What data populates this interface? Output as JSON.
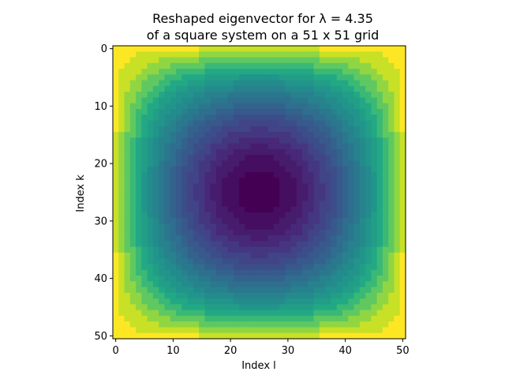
{
  "chart_data": {
    "type": "heatmap",
    "title_line1": "Reshaped eigenvector for λ = 4.35",
    "title_line2": "of a square system on a 51 x 51 grid",
    "xlabel": "Index l",
    "ylabel": "Index k",
    "grid_size": 51,
    "colormap": "viridis",
    "color_scale": [
      {
        "t": 0.0,
        "color": "#440154"
      },
      {
        "t": 0.13,
        "color": "#482475"
      },
      {
        "t": 0.25,
        "color": "#414487"
      },
      {
        "t": 0.38,
        "color": "#355f8d"
      },
      {
        "t": 0.5,
        "color": "#2a788e"
      },
      {
        "t": 0.63,
        "color": "#21918c"
      },
      {
        "t": 0.75,
        "color": "#22a884"
      },
      {
        "t": 0.82,
        "color": "#44bf70"
      },
      {
        "t": 0.88,
        "color": "#7ad151"
      },
      {
        "t": 0.94,
        "color": "#bddf26"
      },
      {
        "t": 1.0,
        "color": "#fde725"
      }
    ],
    "xlim": [
      -0.5,
      50.5
    ],
    "ylim": [
      50.5,
      -0.5
    ],
    "x_ticks": [
      0,
      10,
      20,
      30,
      40,
      50
    ],
    "y_ticks": [
      0,
      10,
      20,
      30,
      40,
      50
    ],
    "y_axis_inverted": true,
    "grid": false,
    "value_description": "normalized eigenvector amplitude, minimum at center (25,25), maximum at boundary"
  }
}
